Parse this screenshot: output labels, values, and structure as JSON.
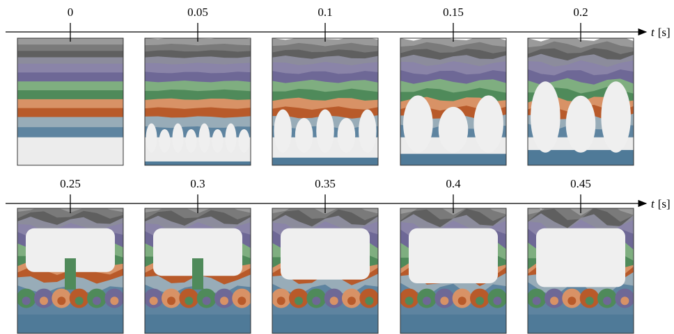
{
  "rows": [
    {
      "times": [
        "0",
        "0.05",
        "0.1",
        "0.15",
        "0.2"
      ]
    },
    {
      "times": [
        "0.25",
        "0.3",
        "0.35",
        "0.4",
        "0.45"
      ]
    }
  ],
  "axis_label": {
    "symbol": "t",
    "unit": "[s]"
  }
}
